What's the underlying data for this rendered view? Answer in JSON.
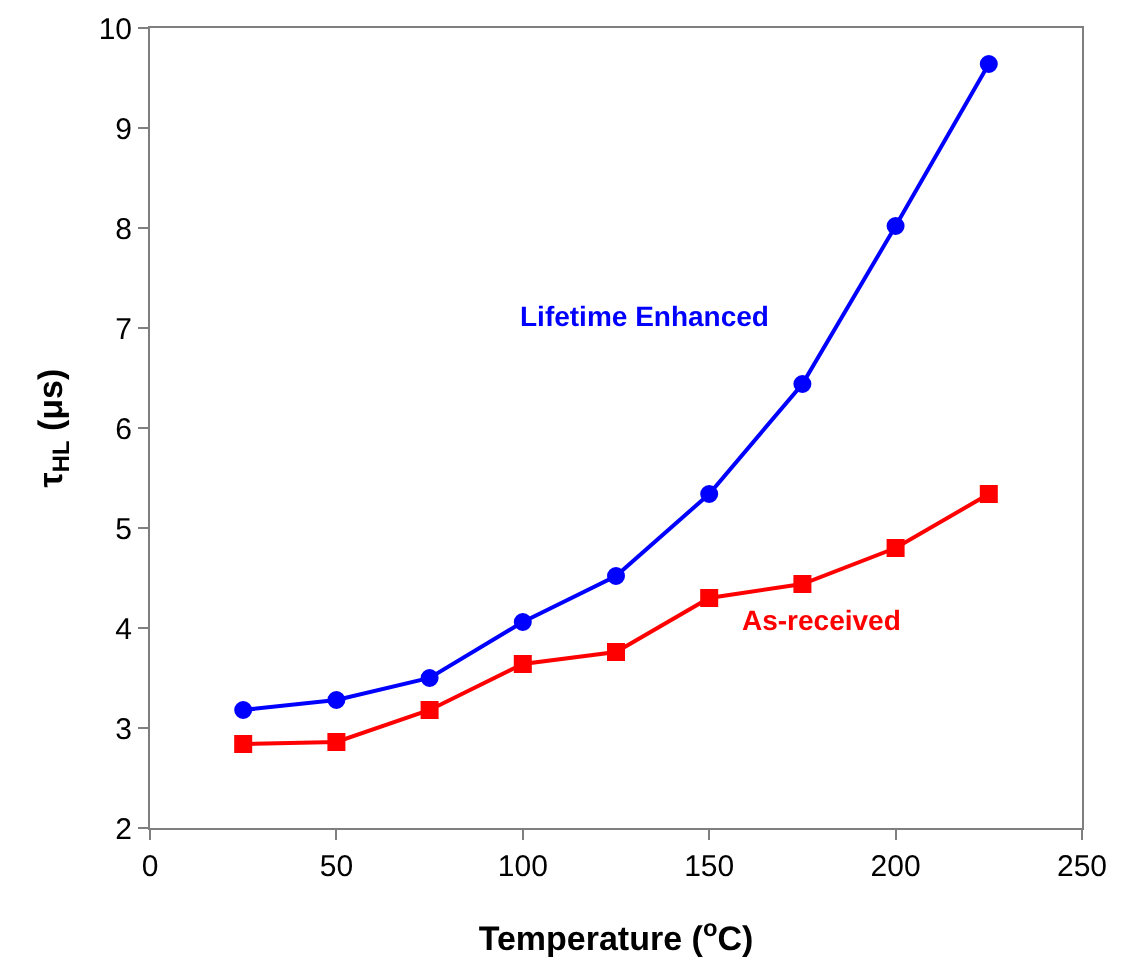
{
  "chart_data": {
    "type": "line",
    "xlabel": "Temperature ($^{o}$C)",
    "ylabel": "τ$_{HL}$ (μs)",
    "x": [
      25,
      50,
      75,
      100,
      125,
      150,
      175,
      200,
      225
    ],
    "series": [
      {
        "color": "#0000ff",
        "marker": "circle",
        "values": [
          3.18,
          3.28,
          3.5,
          4.06,
          4.52,
          5.34,
          6.44,
          8.02,
          9.64
        ]
      },
      {
        "color": "#ff0000",
        "marker": "square",
        "values": [
          2.84,
          2.86,
          3.18,
          3.64,
          3.76,
          4.3,
          4.44,
          4.8,
          5.34
        ]
      }
    ],
    "annotations": [
      "Lifetime Enhanced",
      "As-received"
    ],
    "xlim": [
      0,
      250
    ],
    "xticks": [
      0,
      50,
      100,
      150,
      200,
      250
    ],
    "ylim": [
      2,
      10
    ],
    "yticks": [
      2,
      3,
      4,
      5,
      6,
      7,
      8,
      9,
      10
    ],
    "grid": false
  }
}
